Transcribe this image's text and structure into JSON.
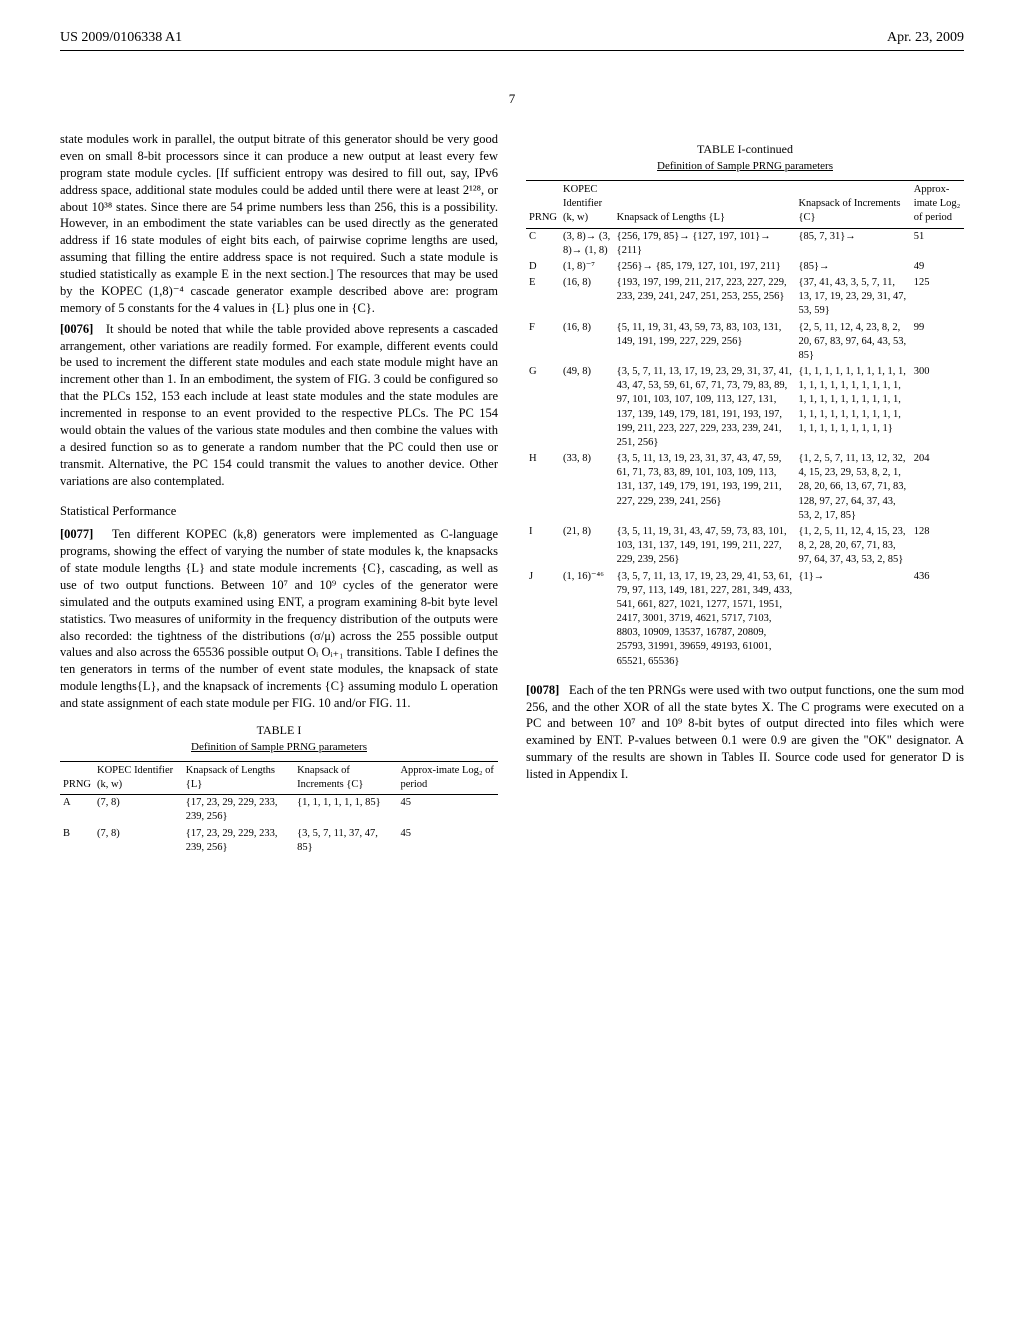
{
  "header": {
    "left": "US 2009/0106338 A1",
    "right": "Apr. 23, 2009"
  },
  "page_number": "7",
  "left_column": {
    "para1": "state modules work in parallel, the output bitrate of this generator should be very good even on small 8-bit processors since it can produce a new output at least every few program state module cycles. [If sufficient entropy was desired to fill out, say, IPv6 address space, additional state modules could be added until there were at least 2¹²⁸, or about 10³⁸ states. Since there are 54 prime numbers less than 256, this is a possibility. However, in an embodiment the state variables can be used directly as the generated address if 16 state modules of eight bits each, of pairwise coprime lengths are used, assuming that filling the entire address space is not required. Such a state module is studied statistically as example E in the next section.] The resources that may be used by the KOPEC (1,8)⁻⁴ cascade generator example described above are: program memory of 5 constants for the 4 values in {L} plus one in {C}.",
    "para2_num": "[0076]",
    "para2": "It should be noted that while the table provided above represents a cascaded arrangement, other variations are readily formed. For example, different events could be used to increment the different state modules and each state module might have an increment other than 1. In an embodiment, the system of FIG. 3 could be configured so that the PLCs 152, 153 each include at least state modules and the state modules are incremented in response to an event provided to the respective PLCs. The PC 154 would obtain the values of the various state modules and then combine the values with a desired function so as to generate a random number that the PC could then use or transmit. Alternative, the PC 154 could transmit the values to another device. Other variations are also contemplated.",
    "section": "Statistical Performance",
    "para3_num": "[0077]",
    "para3": "Ten different KOPEC (k,8) generators were implemented as C-language programs, showing the effect of varying the number of state modules k, the knapsacks of state module lengths {L} and state module increments {C}, cascading, as well as use of two output functions. Between 10⁷ and 10⁹ cycles of the generator were simulated and the outputs examined using ENT, a program examining 8-bit byte level statistics. Two measures of uniformity in the frequency distribution of the outputs were also recorded: the tightness of the distributions (σ/μ) across the 255 possible output values and also across the 65536 possible output Oᵢ Oᵢ₊₁ transitions. Table I defines the ten generators in terms of the number of event state modules, the knapsack of state module lengths{L}, and the knapsack of increments {C} assuming modulo L operation and state assignment of each state module per FIG. 10 and/or FIG. 11."
  },
  "table1": {
    "caption": "TABLE I",
    "subcaption": "Definition of Sample PRNG parameters",
    "headers": [
      "PRNG",
      "KOPEC Identifier (k, w)",
      "Knapsack of Lengths {L}",
      "Knapsack of Increments {C}",
      "Approx-imate Log₂ of period"
    ],
    "rows": [
      [
        "A",
        "(7, 8)",
        "{17, 23, 29, 229, 233, 239, 256}",
        "{1, 1, 1, 1, 1, 1, 85}",
        "45"
      ],
      [
        "B",
        "(7, 8)",
        "{17, 23, 29, 229, 233, 239, 256}",
        "{3, 5, 7, 11, 37, 47, 85}",
        "45"
      ]
    ]
  },
  "table1_cont": {
    "caption": "TABLE I-continued",
    "subcaption": "Definition of Sample PRNG parameters",
    "headers": [
      "PRNG",
      "KOPEC Identifier (k, w)",
      "Knapsack of Lengths {L}",
      "Knapsack of Increments {C}",
      "Approx-imate Log₂ of period"
    ],
    "rows": [
      [
        "C",
        "(3, 8)→ (3, 8)→ (1, 8)",
        "{256, 179, 85}→ {127, 197, 101}→ {211}",
        "{85, 7, 31}→",
        "51"
      ],
      [
        "D",
        "(1, 8)⁻⁷",
        "{256}→ {85, 179, 127, 101, 197, 211}",
        "{85}→",
        "49"
      ],
      [
        "E",
        "(16, 8)",
        "{193, 197, 199, 211, 217, 223, 227, 229, 233, 239, 241, 247, 251, 253, 255, 256}",
        "{37, 41, 43, 3, 5, 7, 11, 13, 17, 19, 23, 29, 31, 47, 53, 59}",
        "125"
      ],
      [
        "F",
        "(16, 8)",
        "{5, 11, 19, 31, 43, 59, 73, 83, 103, 131, 149, 191, 199, 227, 229, 256}",
        "{2, 5, 11, 12, 4, 23, 8, 2, 20, 67, 83, 97, 64, 43, 53, 85}",
        "99"
      ],
      [
        "G",
        "(49, 8)",
        "{3, 5, 7, 11, 13, 17, 19, 23, 29, 31, 37, 41, 43, 47, 53, 59, 61, 67, 71, 73, 79, 83, 89, 97, 101, 103, 107, 109, 113, 127, 131, 137, 139, 149, 179, 181, 191, 193, 197, 199, 211, 223, 227, 229, 233, 239, 241, 251, 256}",
        "{1, 1, 1, 1, 1, 1, 1, 1, 1, 1, 1, 1, 1, 1, 1, 1, 1, 1, 1, 1, 1, 1, 1, 1, 1, 1, 1, 1, 1, 1, 1, 1, 1, 1, 1, 1, 1, 1, 1, 1, 1, 1, 1, 1, 1, 1, 1, 1, 1}",
        "300"
      ],
      [
        "H",
        "(33, 8)",
        "{3, 5, 11, 13, 19, 23, 31, 37, 43, 47, 59, 61, 71, 73, 83, 89, 101, 103, 109, 113, 131, 137, 149, 179, 191, 193, 199, 211, 227, 229, 239, 241, 256}",
        "{1, 2, 5, 7, 11, 13, 12, 32, 4, 15, 23, 29, 53, 8, 2, 1, 28, 20, 66, 13, 67, 71, 83, 128, 97, 27, 64, 37, 43, 53, 2, 17, 85}",
        "204"
      ],
      [
        "I",
        "(21, 8)",
        "{3, 5, 11, 19, 31, 43, 47, 59, 73, 83, 101, 103, 131, 137, 149, 191, 199, 211, 227, 229, 239, 256}",
        "{1, 2, 5, 11, 12, 4, 15, 23, 8, 2, 28, 20, 67, 71, 83, 97, 64, 37, 43, 53, 2, 85}",
        "128"
      ],
      [
        "J",
        "(1, 16)⁻⁴⁶",
        "{3, 5, 7, 11, 13, 17, 19, 23, 29, 41, 53, 61, 79, 97, 113, 149, 181, 227, 281, 349, 433, 541, 661, 827, 1021, 1277, 1571, 1951, 2417, 3001, 3719, 4621, 5717, 7103, 8803, 10909, 13537, 16787, 20809, 25793, 31991, 39659, 49193, 61001, 65521, 65536}",
        "{1}→",
        "436"
      ]
    ]
  },
  "right_column": {
    "para4_num": "[0078]",
    "para4": "Each of the ten PRNGs were used with two output functions, one the sum mod 256, and the other XOR of all the state bytes X. The C programs were executed on a PC and between 10⁷ and 10⁹ 8-bit bytes of output directed into files which were examined by ENT. P-values between 0.1 were 0.9 are given the \"OK\" designator. A summary of the results are shown in Tables II. Source code used for generator D is listed in Appendix I."
  }
}
